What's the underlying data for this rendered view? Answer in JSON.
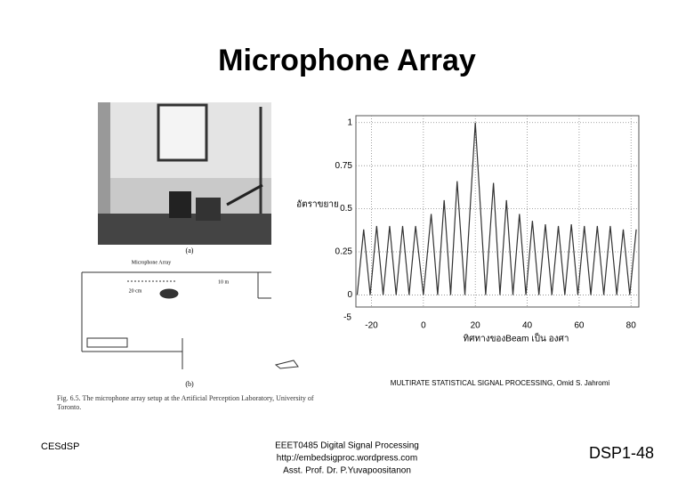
{
  "title": "Microphone Array",
  "figure": {
    "panel_a": "(a)",
    "panel_b": "(b)",
    "array_label": "Microphone Array",
    "dim_long": "10 m",
    "dim_short": "20 cm",
    "caption": "Fig. 6.5. The microphone array setup at the Artificial Perception Laboratory, University of Toronto."
  },
  "chart_data": {
    "type": "line",
    "ylabel": "อัตราขยาย",
    "xlabel": "ทิศทางของBeam เป็น องศา",
    "corner_label": "-5",
    "x": [
      -25.5,
      -23,
      -20.5,
      -18,
      -15.5,
      -13,
      -10.5,
      -8,
      -5.5,
      -3,
      0,
      3,
      5.5,
      8,
      10.5,
      13,
      16,
      20,
      24,
      27,
      29.5,
      32,
      34.5,
      37,
      39.5,
      42,
      44.5,
      47,
      49.5,
      52,
      54.5,
      57,
      59.5,
      62,
      64.5,
      67,
      69.5,
      72,
      74.5,
      77,
      79.5,
      82
    ],
    "values": [
      0,
      0.38,
      0,
      0.4,
      0,
      0.4,
      0,
      0.4,
      0,
      0.4,
      0,
      0.47,
      0,
      0.55,
      0,
      0.66,
      0,
      1,
      0,
      0.65,
      0,
      0.55,
      0,
      0.47,
      0,
      0.43,
      0,
      0.41,
      0,
      0.4,
      0,
      0.41,
      0,
      0.4,
      0,
      0.4,
      0,
      0.4,
      0,
      0.38,
      0,
      0.38
    ],
    "color": "#333333",
    "xlim": [
      -26,
      83
    ],
    "ylim": [
      -0.07,
      1.04
    ],
    "xticks": [
      -20,
      0,
      20,
      40,
      60,
      80
    ],
    "yticks": [
      0,
      0.25,
      0.5,
      0.75,
      1
    ],
    "grid": true
  },
  "source": "MULTIRATE STATISTICAL SIGNAL PROCESSING, Omid S. Jahromi",
  "footer": {
    "left": "CESdSP",
    "center": [
      "EEET0485 Digital Signal Processing",
      "http://embedsigproc.wordpress.com",
      "Asst. Prof. Dr. P.Yuvapoositanon"
    ],
    "right": "DSP1-48"
  }
}
